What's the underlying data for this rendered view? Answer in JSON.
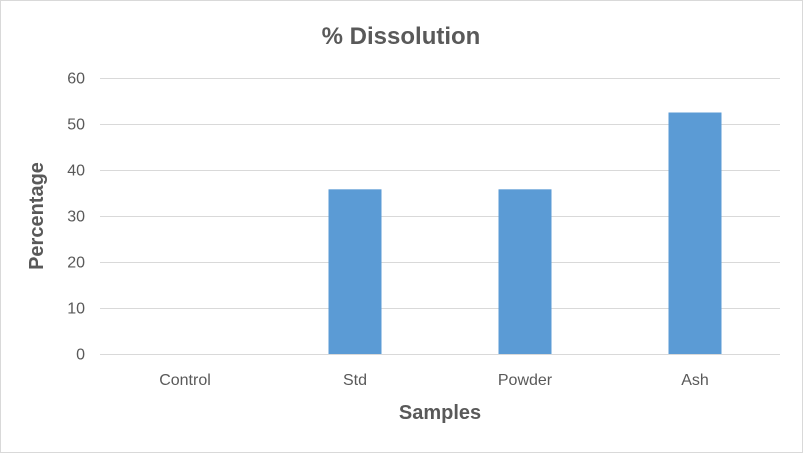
{
  "chart_data": {
    "type": "bar",
    "title": "% Dissolution",
    "xlabel": "Samples",
    "ylabel": "Percentage",
    "categories": [
      "Control",
      "Std",
      "Powder",
      "Ash"
    ],
    "values": [
      0,
      35.8,
      35.8,
      52.5
    ],
    "ylim": [
      0,
      60
    ],
    "yticks": [
      0,
      10,
      20,
      30,
      40,
      50,
      60
    ],
    "grid": true,
    "legend": "none",
    "bar_color": "#5b9bd5"
  }
}
